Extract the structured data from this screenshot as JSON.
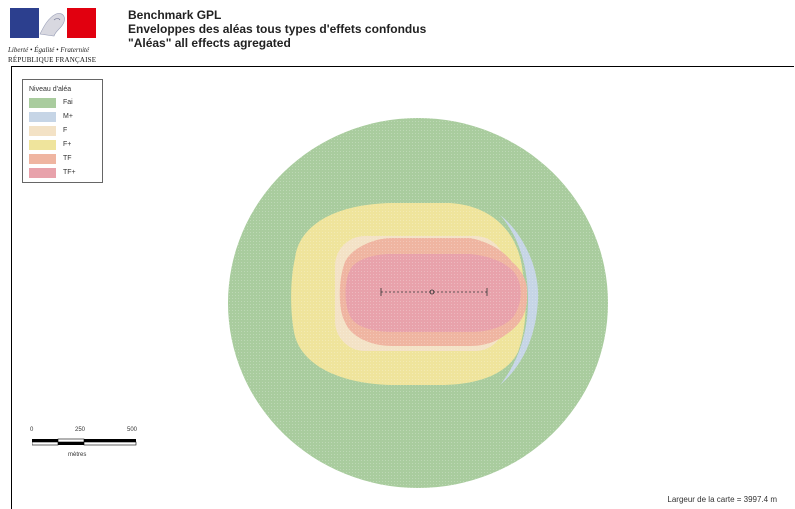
{
  "header": {
    "motto": "Liberté • Égalité • Fraternité",
    "republic": "RÉPUBLIQUE FRANÇAISE",
    "title_line1": "Benchmark GPL",
    "title_line2": "Enveloppes des aléas tous types d'effets confondus",
    "title_line3": "\"Aléas\" all effects agregated"
  },
  "legend": {
    "title": "Niveau d'aléa",
    "items": [
      {
        "label": "Fai",
        "color": "#a9cc9e"
      },
      {
        "label": "M+",
        "color": "#c6d5e6"
      },
      {
        "label": "F",
        "color": "#f3e2c6"
      },
      {
        "label": "F+",
        "color": "#efe49c"
      },
      {
        "label": "TF",
        "color": "#efb5a1"
      },
      {
        "label": "TF+",
        "color": "#e8a2ab"
      }
    ]
  },
  "scale": {
    "tick0": "0",
    "tick1": "250",
    "tick2": "500",
    "unit": "mètres"
  },
  "footer": {
    "map_width": "Largeur de la carte = 3997.4 m"
  },
  "colors": {
    "flag_blue": "#2c3f8e",
    "flag_red": "#e1000f",
    "zone_fai": "#a9cc9e",
    "zone_m_plus": "#c6d5e6",
    "zone_f": "#f3e2c6",
    "zone_f_plus": "#efe49c",
    "zone_tf": "#efb5a1",
    "zone_tf_plus": "#e8a2ab"
  }
}
